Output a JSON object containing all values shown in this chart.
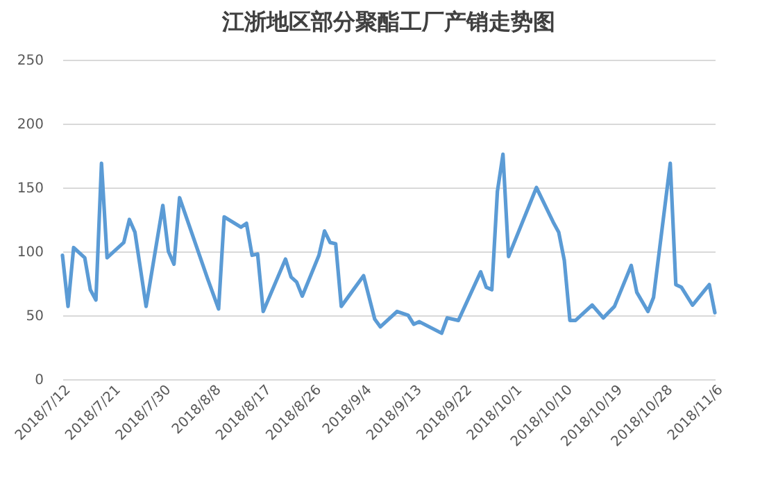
{
  "chart_data": {
    "type": "line",
    "title": "江浙地区部分聚酯工厂产销走势图",
    "x": [
      "2018-07-12",
      "2018-07-13",
      "2018-07-14",
      "2018-07-16",
      "2018-07-17",
      "2018-07-18",
      "2018-07-19",
      "2018-07-20",
      "2018-07-23",
      "2018-07-24",
      "2018-07-25",
      "2018-07-27",
      "2018-07-30",
      "2018-07-31",
      "2018-08-01",
      "2018-08-02",
      "2018-08-07",
      "2018-08-09",
      "2018-08-10",
      "2018-08-13",
      "2018-08-14",
      "2018-08-15",
      "2018-08-16",
      "2018-08-17",
      "2018-08-21",
      "2018-08-22",
      "2018-08-23",
      "2018-08-24",
      "2018-08-27",
      "2018-08-28",
      "2018-08-29",
      "2018-08-30",
      "2018-08-31",
      "2018-09-04",
      "2018-09-06",
      "2018-09-07",
      "2018-09-10",
      "2018-09-12",
      "2018-09-13",
      "2018-09-14",
      "2018-09-18",
      "2018-09-19",
      "2018-09-21",
      "2018-09-25",
      "2018-09-26",
      "2018-09-27",
      "2018-09-28",
      "2018-09-29",
      "2018-09-30",
      "2018-10-05",
      "2018-10-08",
      "2018-10-09",
      "2018-10-10",
      "2018-10-11",
      "2018-10-12",
      "2018-10-15",
      "2018-10-17",
      "2018-10-19",
      "2018-10-22",
      "2018-10-23",
      "2018-10-25",
      "2018-10-26",
      "2018-10-29",
      "2018-10-30",
      "2018-10-31",
      "2018-11-02",
      "2018-11-05",
      "2018-11-06"
    ],
    "series": [
      {
        "color": "#5b9bd5",
        "values": [
          97,
          57,
          103,
          95,
          70,
          62,
          169,
          95,
          107,
          125,
          115,
          57,
          136,
          100,
          90,
          142,
          79,
          55,
          127,
          119,
          122,
          97,
          98,
          53,
          94,
          80,
          76,
          65,
          97,
          116,
          107,
          106,
          57,
          81,
          47,
          41,
          53,
          50,
          43,
          45,
          36,
          48,
          46,
          84,
          72,
          70,
          147,
          176,
          96,
          150,
          123,
          115,
          93,
          46,
          46,
          58,
          48,
          57,
          89,
          68,
          53,
          64,
          169,
          74,
          72,
          58,
          74,
          52
        ]
      }
    ],
    "xlim": [
      "2018-07-12",
      "2018-11-06"
    ],
    "xticks": [
      {
        "value": "2018-07-12",
        "label": "2018/7/12"
      },
      {
        "value": "2018-07-21",
        "label": "2018/7/21"
      },
      {
        "value": "2018-07-30",
        "label": "2018/7/30"
      },
      {
        "value": "2018-08-08",
        "label": "2018/8/8"
      },
      {
        "value": "2018-08-17",
        "label": "2018/8/17"
      },
      {
        "value": "2018-08-26",
        "label": "2018/8/26"
      },
      {
        "value": "2018-09-04",
        "label": "2018/9/4"
      },
      {
        "value": "2018-09-13",
        "label": "2018/9/13"
      },
      {
        "value": "2018-09-22",
        "label": "2018/9/22"
      },
      {
        "value": "2018-10-01",
        "label": "2018/10/1"
      },
      {
        "value": "2018-10-10",
        "label": "2018/10/10"
      },
      {
        "value": "2018-10-19",
        "label": "2018/10/19"
      },
      {
        "value": "2018-10-28",
        "label": "2018/10/28"
      },
      {
        "value": "2018-11-06",
        "label": "2018/11/6"
      }
    ],
    "ylim": [
      0,
      250
    ],
    "yticks": [
      0,
      50,
      100,
      150,
      200,
      250
    ],
    "grid": "y",
    "legend": false,
    "marker": "none",
    "line_style": "solid"
  }
}
